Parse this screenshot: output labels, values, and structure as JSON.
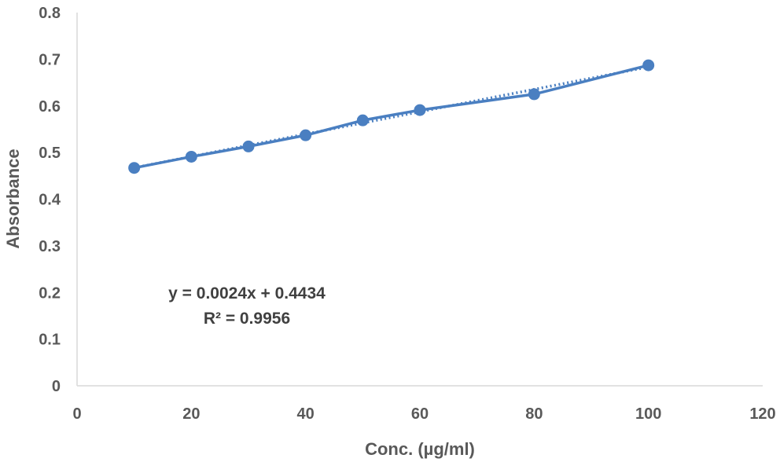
{
  "chart_data": {
    "type": "scatter",
    "title": "",
    "xlabel": "Conc. (µg/ml)",
    "ylabel": "Absorbance",
    "xlim": [
      0,
      120
    ],
    "ylim": [
      0,
      0.8
    ],
    "x_ticks": [
      "0",
      "20",
      "40",
      "60",
      "80",
      "100",
      "120"
    ],
    "y_ticks": [
      "0",
      "0.1",
      "0.2",
      "0.3",
      "0.4",
      "0.5",
      "0.6",
      "0.7",
      "0.8"
    ],
    "grid": false,
    "legend": "none",
    "series": [
      {
        "x": [
          10,
          20,
          30,
          40,
          50,
          60,
          80,
          100
        ],
        "y": [
          0.467,
          0.491,
          0.513,
          0.537,
          0.569,
          0.591,
          0.625,
          0.687
        ],
        "color": "#4a7fc1",
        "line": "solid",
        "marker": "circle"
      }
    ],
    "trendline": {
      "slope": 0.0024,
      "intercept": 0.4434,
      "style": "dotted",
      "color": "#4a7fc1"
    },
    "annotations": {
      "equation": "y = 0.0024x + 0.4434",
      "r_squared": "R² = 0.9956"
    }
  }
}
